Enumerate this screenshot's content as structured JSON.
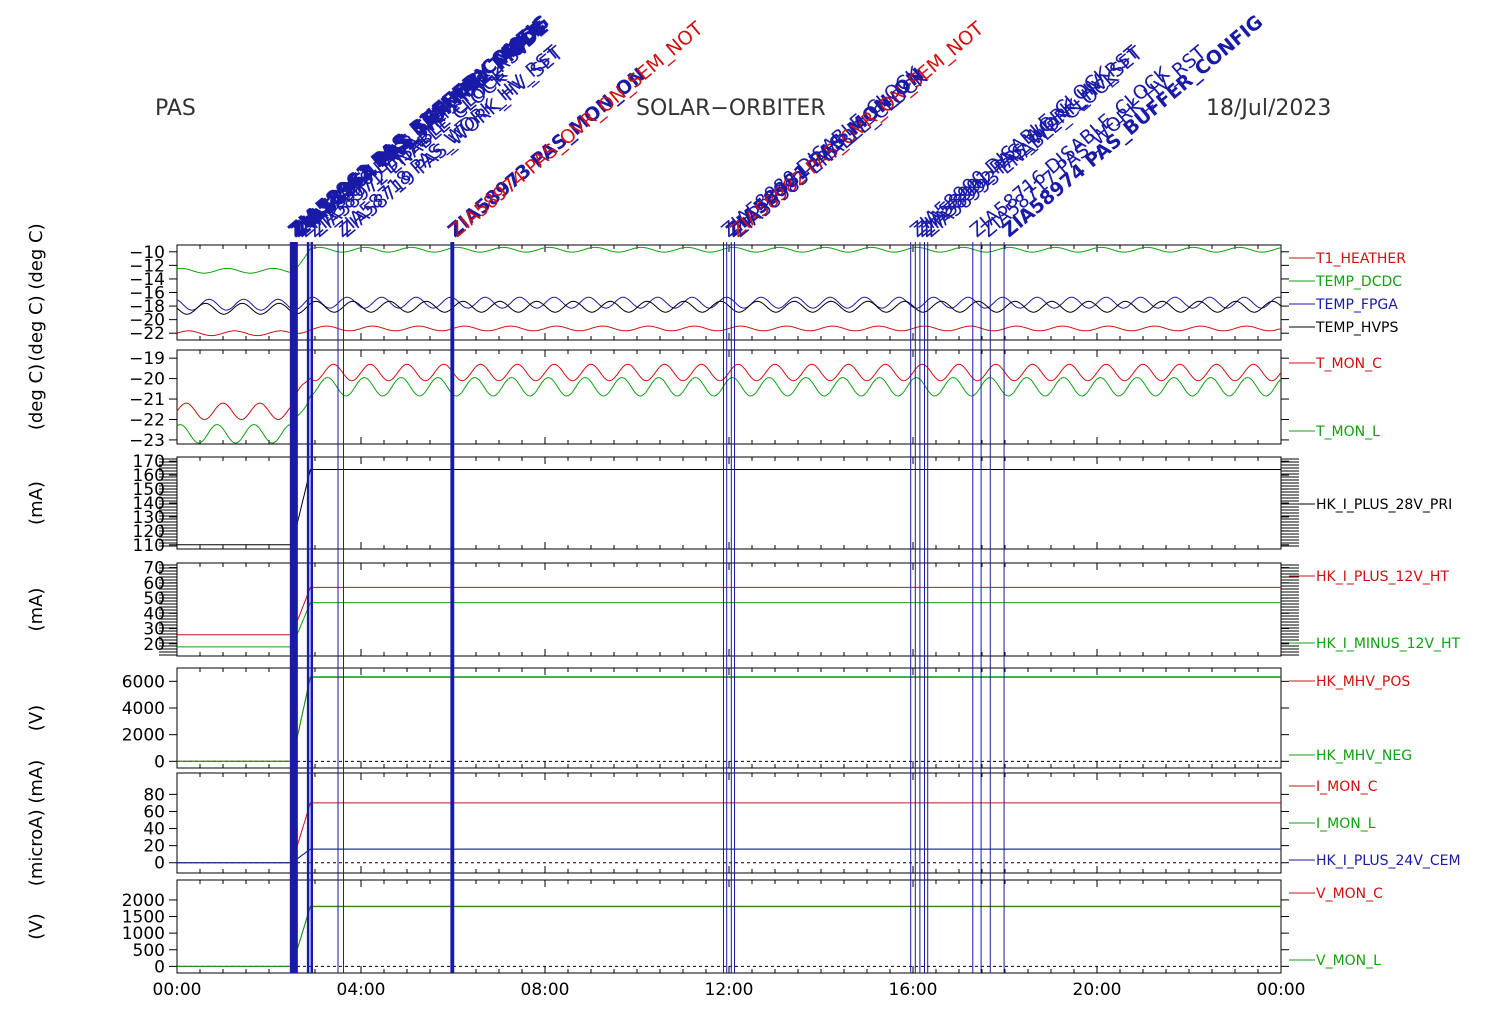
{
  "header": {
    "left": "PAS",
    "center": "SOLAR−ORBITER",
    "right": "18/Jul/2023"
  },
  "colors": {
    "red": "#d01010",
    "green": "#10a010",
    "blue": "#1a1aa8",
    "black": "#000000"
  },
  "command_labels": [
    {
      "t": 2.48,
      "text": "ZIA58961 PAS_BUFFER_CONFIG",
      "color": "blue",
      "bold": true
    },
    {
      "t": 2.5,
      "text": "ZIA58962 PAS_STANDBY_MODE",
      "color": "blue",
      "bold": true
    },
    {
      "t": 2.55,
      "text": "ZIA58963 PAS_SET_PAR_TABLE",
      "color": "blue",
      "bold": true
    },
    {
      "t": 2.62,
      "text": "ZIA58964 PAS_NORMAL_MODE",
      "color": "blue",
      "bold": true
    },
    {
      "t": 2.7,
      "text": "ZIA58970 EAS2_NRM_PAR_RSV",
      "color": "blue",
      "bold": false
    },
    {
      "t": 2.9,
      "text": "ZIA58971 DISABLE_CLOCK",
      "color": "blue",
      "bold": false
    },
    {
      "t": 3.0,
      "text": "ZIA58972 ENABLE_CLOCK",
      "color": "blue",
      "bold": false
    },
    {
      "t": 3.5,
      "text": "ZIA58718 PAS_WORK_HV_RST",
      "color": "blue",
      "bold": false
    },
    {
      "t": 3.6,
      "text": "ZIA58719 PAS_WORK_HV_SET",
      "color": "blue",
      "bold": false
    },
    {
      "t": 5.95,
      "text": "ZIA58973 PAS_MON_ON",
      "color": "blue",
      "bold": true
    },
    {
      "t": 6.0,
      "text": "ZIA58974 PAS_OVR_ON_SEM_NOT",
      "color": "red",
      "bold": false
    },
    {
      "t": 11.9,
      "text": "ZIA58980 DISABLE_CLOCK",
      "color": "blue",
      "bold": false
    },
    {
      "t": 12.0,
      "text": "ZIA58981 PAS_MON_ON",
      "color": "blue",
      "bold": true
    },
    {
      "t": 12.1,
      "text": "ZIA58982 PAS_OVR_ON_SEM_NOT",
      "color": "red",
      "bold": false
    },
    {
      "t": 12.15,
      "text": "ZIA58983 ENABLE_CLOCK",
      "color": "blue",
      "bold": false
    },
    {
      "t": 16.0,
      "text": "ZIA58990 DISABLE_CLOCK",
      "color": "blue",
      "bold": false
    },
    {
      "t": 16.1,
      "text": "ZIA58991 PAS_WORK_HV_RST",
      "color": "blue",
      "bold": false
    },
    {
      "t": 16.2,
      "text": "ZIA58992 PAS_WORK_HV_SET",
      "color": "blue",
      "bold": false
    },
    {
      "t": 16.3,
      "text": "ZIA58993 ENABLE_CLOCK",
      "color": "blue",
      "bold": false
    },
    {
      "t": 17.3,
      "text": "ZIA58716 DISABLE_CLOCK",
      "color": "blue",
      "bold": false
    },
    {
      "t": 17.55,
      "text": "ZIA58717 PAS_WORK_HV_RST",
      "color": "blue",
      "bold": false
    },
    {
      "t": 18.0,
      "text": "ZIA58974 PAS_BUFFER_CONFIG",
      "color": "blue",
      "bold": true
    }
  ],
  "chart_data": {
    "type": "line",
    "x_ticks": [
      "00:00",
      "04:00",
      "08:00",
      "12:00",
      "16:00",
      "20:00",
      "00:00"
    ],
    "x_range_hours": [
      0,
      24
    ],
    "event_lines_hours": [
      2.48,
      2.52,
      2.56,
      2.6,
      2.85,
      2.93,
      3.5,
      3.62,
      5.97,
      6.0,
      11.88,
      11.95,
      12.05,
      12.12,
      15.95,
      16.05,
      16.15,
      16.25,
      16.32,
      17.3,
      17.48,
      17.68,
      17.98
    ],
    "panels": [
      {
        "ylabel": "(deg C) (deg C)",
        "ylim": [
          -23,
          -9
        ],
        "yticks": [
          "−10",
          "−12",
          "−14",
          "−16",
          "−18",
          "−20",
          "−22"
        ],
        "series": [
          {
            "name": "T1_HEATHER",
            "color": "red",
            "before": -22,
            "after": -21.3,
            "amp": 0.35,
            "period": 1.0
          },
          {
            "name": "TEMP_DCDC",
            "color": "green",
            "before": -12.8,
            "after": -9.7,
            "amp": 0.35,
            "period": 1.0
          },
          {
            "name": "TEMP_FPGA",
            "color": "blue",
            "before": -17.8,
            "after": -17.5,
            "amp": 0.8,
            "period": 0.75
          },
          {
            "name": "TEMP_HVPS",
            "color": "black",
            "before": -18.4,
            "after": -18.1,
            "amp": 0.8,
            "period": 0.8
          }
        ]
      },
      {
        "ylabel": "(deg C)",
        "ylim": [
          -23.2,
          -18.6
        ],
        "yticks": [
          "−19",
          "−20",
          "−21",
          "−22",
          "−23"
        ],
        "series": [
          {
            "name": "T_MON_C",
            "color": "red",
            "before": -21.6,
            "after": -19.7,
            "amp": 0.4,
            "period": 0.8
          },
          {
            "name": "T_MON_L",
            "color": "green",
            "before": -22.7,
            "after": -20.4,
            "amp": 0.45,
            "period": 0.8
          }
        ]
      },
      {
        "ylabel": "(mA)",
        "ylim": [
          107,
          173
        ],
        "yticks": [
          "170",
          "160",
          "150",
          "140",
          "130",
          "120",
          "110"
        ],
        "series": [
          {
            "name": "HK_I_PLUS_28V_PRI",
            "color": "black",
            "before": 110,
            "after": 164,
            "amp": 0,
            "period": 1.0
          }
        ]
      },
      {
        "ylabel": "(mA)",
        "ylim": [
          12,
          73
        ],
        "yticks": [
          "70",
          "60",
          "50",
          "40",
          "30",
          "20"
        ],
        "series": [
          {
            "name": "HK_I_PLUS_12V_HT",
            "color": "red",
            "before": 26,
            "after": 57,
            "amp": 0,
            "period": 1.0
          },
          {
            "name": "HK_I_MINUS_12V_HT",
            "color": "green",
            "before": 18,
            "after": 47,
            "amp": 0,
            "period": 1.0
          }
        ]
      },
      {
        "ylabel": "(V)",
        "ylim": [
          -500,
          7000
        ],
        "yticks": [
          "6000",
          "4000",
          "2000",
          "0"
        ],
        "series": [
          {
            "name": "HK_MHV_POS",
            "color": "red",
            "before": 0,
            "after": 6300,
            "amp": 0,
            "period": 1.0
          },
          {
            "name": "HK_MHV_NEG",
            "color": "green",
            "before": 0,
            "after": 6350,
            "amp": 0,
            "period": 1.0
          }
        ]
      },
      {
        "ylabel": "(microA) (mA)",
        "ylim": [
          -12,
          105
        ],
        "yticks": [
          "80",
          "60",
          "40",
          "20",
          "0"
        ],
        "series": [
          {
            "name": "I_MON_C",
            "color": "red",
            "before": 0,
            "after": 70,
            "amp": 0,
            "period": 1.0
          },
          {
            "name": "I_MON_L",
            "color": "green",
            "before": 0,
            "after": 16,
            "amp": 0,
            "period": 1.0
          },
          {
            "name": "HK_I_PLUS_24V_CEM",
            "color": "blue",
            "before": 0,
            "after": 16,
            "amp": 0,
            "period": 1.0
          }
        ]
      },
      {
        "ylabel": "(V)",
        "ylim": [
          -200,
          2600
        ],
        "yticks": [
          "2000",
          "1500",
          "1000",
          "500",
          "0"
        ],
        "series": [
          {
            "name": "V_MON_C",
            "color": "red",
            "before": 0,
            "after": 1800,
            "amp": 0,
            "period": 1.0
          },
          {
            "name": "V_MON_L",
            "color": "green",
            "before": 0,
            "after": 1810,
            "amp": 0,
            "period": 1.0
          }
        ]
      }
    ]
  }
}
